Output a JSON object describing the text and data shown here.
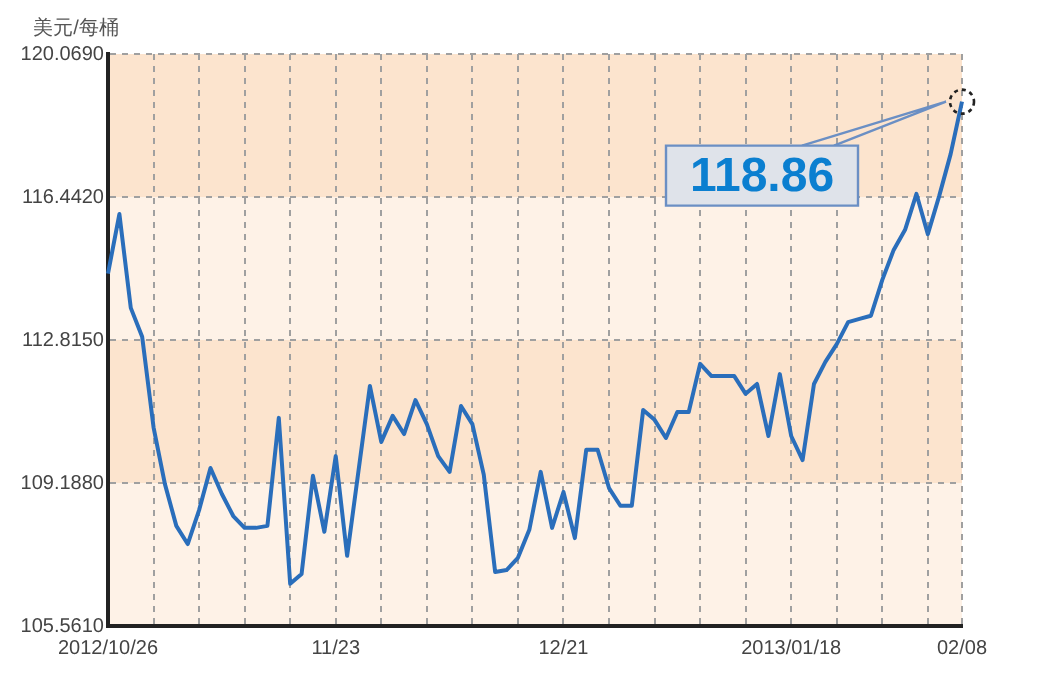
{
  "chart_data": {
    "type": "line",
    "ylabel": "美元/每桶",
    "categories": [
      "2012/10/26",
      null,
      null,
      null,
      null,
      null,
      null,
      null,
      null,
      null,
      null,
      null,
      null,
      null,
      null,
      null,
      null,
      null,
      null,
      null,
      "11/23",
      null,
      null,
      null,
      null,
      null,
      null,
      null,
      null,
      null,
      null,
      null,
      null,
      null,
      null,
      null,
      null,
      null,
      null,
      null,
      "12/21",
      null,
      null,
      null,
      null,
      null,
      null,
      null,
      null,
      null,
      null,
      null,
      null,
      null,
      null,
      null,
      null,
      null,
      null,
      null,
      "2013/01/18",
      null,
      null,
      null,
      null,
      null,
      null,
      null,
      null,
      null,
      null,
      null,
      null,
      null,
      null,
      "02/08"
    ],
    "series": [
      {
        "color": "#2a6ebb",
        "values": [
          114.5,
          116.01,
          113.63,
          112.9,
          110.6,
          109.16,
          108.1,
          107.64,
          108.5,
          109.57,
          108.91,
          108.35,
          108.05,
          108.05,
          108.1,
          110.84,
          106.63,
          106.88,
          109.37,
          107.95,
          109.87,
          107.34,
          109.5,
          111.65,
          110.23,
          110.89,
          110.43,
          111.29,
          110.68,
          109.87,
          109.47,
          111.14,
          110.68,
          109.4,
          106.93,
          106.98,
          107.29,
          108.0,
          109.47,
          108.05,
          108.96,
          107.79,
          110.03,
          110.03,
          109.06,
          108.61,
          108.61,
          111.04,
          110.79,
          110.33,
          110.99,
          110.99,
          112.21,
          111.9,
          111.9,
          111.9,
          111.45,
          111.7,
          110.38,
          111.95,
          110.38,
          109.77,
          111.7,
          112.26,
          112.71,
          113.27,
          113.35,
          113.43,
          114.34,
          115.1,
          115.61,
          116.52,
          115.5,
          116.47,
          117.53,
          118.86
        ]
      }
    ],
    "ylim": [
      105.561,
      120.069
    ],
    "yticks": [
      {
        "value": 105.561,
        "label": "105.5610"
      },
      {
        "value": 109.188,
        "label": "109.1880"
      },
      {
        "value": 112.815,
        "label": "112.8150"
      },
      {
        "value": 116.442,
        "label": "116.4420"
      },
      {
        "value": 120.069,
        "label": "120.0690"
      }
    ],
    "bands": [
      {
        "axis": "y",
        "from": 116.442,
        "to": 120.069,
        "color": "#fce4ce"
      },
      {
        "axis": "y",
        "from": 112.815,
        "to": 116.442,
        "color": "#fef2e7"
      },
      {
        "axis": "y",
        "from": 109.188,
        "to": 112.815,
        "color": "#fce4ce"
      },
      {
        "axis": "y",
        "from": 105.561,
        "to": 109.188,
        "color": "#fef2e7"
      }
    ],
    "grid": true,
    "legend": false,
    "marker": "none",
    "line_style": "solid",
    "annotations": [
      {
        "text": "118.86",
        "x": "02/08",
        "y": 118.86
      }
    ]
  }
}
